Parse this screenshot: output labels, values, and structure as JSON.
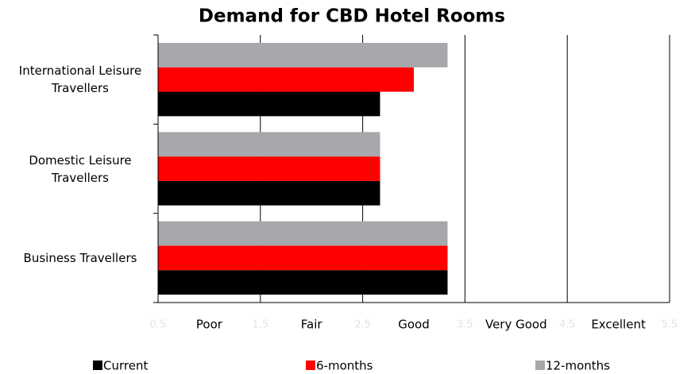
{
  "chart_data": {
    "type": "hbar",
    "title": "Demand for CBD Hotel Rooms",
    "categories": [
      "International Leisure Travellers",
      "Domestic Leisure Travellers",
      "Business Travellers"
    ],
    "series": [
      {
        "name": "Current",
        "color": "#000000",
        "values": [
          2.67,
          2.67,
          3.33
        ]
      },
      {
        "name": "6-months",
        "color": "#ff0000",
        "values": [
          3.0,
          2.67,
          3.33
        ]
      },
      {
        "name": "12-months",
        "color": "#a6a8ab",
        "values": [
          3.33,
          2.67,
          3.33
        ]
      }
    ],
    "xlim": [
      0.5,
      5.5
    ],
    "xticks": [
      0.5,
      1.5,
      2.5,
      3.5,
      4.5,
      5.5
    ],
    "xlabels": [
      {
        "value": 1,
        "label": "Poor"
      },
      {
        "value": 2,
        "label": "Fair"
      },
      {
        "value": 3,
        "label": "Good"
      },
      {
        "value": 4,
        "label": "Very Good"
      },
      {
        "value": 5,
        "label": "Excellent"
      }
    ],
    "grid": true
  }
}
